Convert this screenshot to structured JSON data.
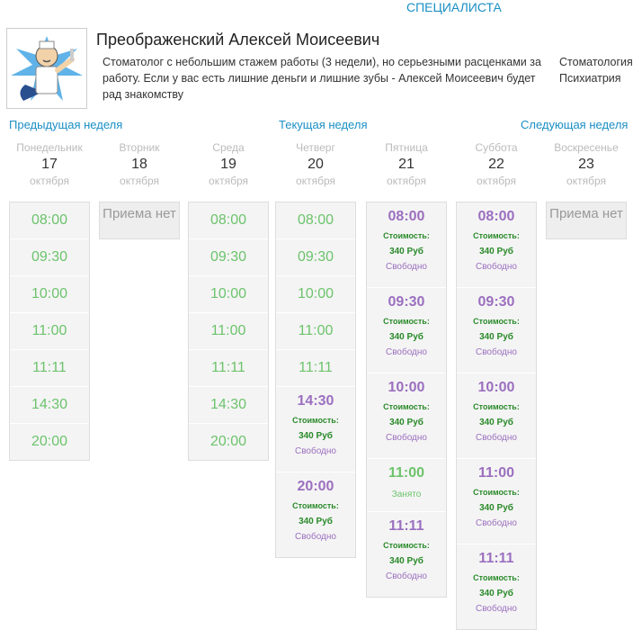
{
  "nav": {
    "specialists": "СПЕЦИАЛИСТА"
  },
  "doctor": {
    "name": "Преображенский Алексей Моисеевич",
    "description": "Стоматолог с небольшим стажем работы (3 недели), но серьезными расценками за работу. Если у вас есть лишние деньги и лишние зубы - Алексей Моисеевич будет рад знакомству",
    "specialties": [
      "Стоматология",
      "Психиатрия"
    ]
  },
  "week_nav": {
    "prev": "Предыдущая неделя",
    "current": "Текущая неделя",
    "next": "Следующая неделя"
  },
  "labels": {
    "cost": "Стоимость:",
    "no_reception": "Приема нет"
  },
  "days": [
    {
      "name": "Понедельник",
      "date": "17",
      "month": "октября",
      "slots": [
        "08:00",
        "09:30",
        "10:00",
        "11:00",
        "11:11",
        "14:30",
        "20:00"
      ]
    },
    {
      "name": "Вторник",
      "date": "18",
      "month": "октября",
      "slots": []
    },
    {
      "name": "Среда",
      "date": "19",
      "month": "октября",
      "slots": [
        "08:00",
        "09:30",
        "10:00",
        "11:00",
        "11:11",
        "14:30",
        "20:00"
      ]
    },
    {
      "name": "Четверг",
      "date": "20",
      "month": "октября",
      "slots": [
        "08:00",
        "09:30",
        "10:00",
        "11:00",
        "11:11"
      ],
      "bookable": [
        {
          "time": "14:30",
          "price": "340 Руб",
          "status": "Свободно"
        },
        {
          "time": "20:00",
          "price": "340 Руб",
          "status": "Свободно"
        }
      ]
    },
    {
      "name": "Пятница",
      "date": "21",
      "month": "октября",
      "bookable": [
        {
          "time": "08:00",
          "price": "340 Руб",
          "status": "Свободно"
        },
        {
          "time": "09:30",
          "price": "340 Руб",
          "status": "Свободно"
        },
        {
          "time": "10:00",
          "price": "340 Руб",
          "status": "Свободно"
        },
        {
          "time": "11:00",
          "status": "Занято"
        },
        {
          "time": "11:11",
          "price": "340 Руб",
          "status": "Свободно"
        }
      ]
    },
    {
      "name": "Суббота",
      "date": "22",
      "month": "октября",
      "bookable": [
        {
          "time": "08:00",
          "price": "340 Руб",
          "status": "Свободно"
        },
        {
          "time": "09:30",
          "price": "340 Руб",
          "status": "Свободно"
        },
        {
          "time": "10:00",
          "price": "340 Руб",
          "status": "Свободно"
        },
        {
          "time": "11:00",
          "price": "340 Руб",
          "status": "Свободно"
        },
        {
          "time": "11:11",
          "price": "340 Руб",
          "status": "Свободно"
        }
      ]
    },
    {
      "name": "Воскресенье",
      "date": "23",
      "month": "октября",
      "slots": []
    }
  ],
  "colors": {
    "link": "#1a8fc4",
    "free_slot": "#6cc36c",
    "time_purple": "#9b6fbf",
    "price_green": "#2a8a2a"
  }
}
